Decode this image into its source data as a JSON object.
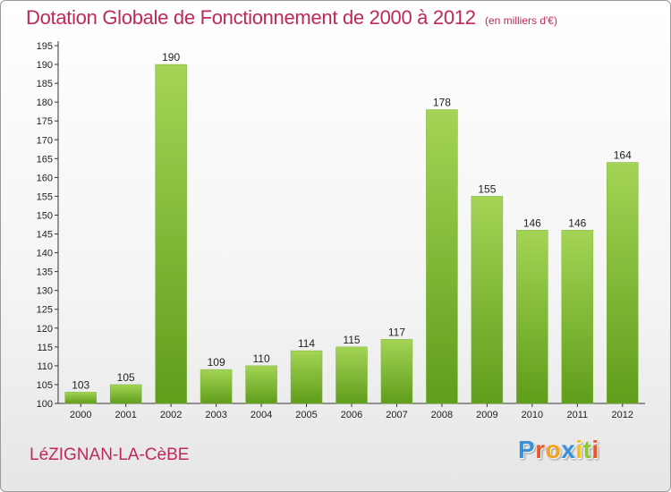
{
  "title": "Dotation Globale de Fonctionnement de 2000 à 2012",
  "subtitle": "(en milliers d'€)",
  "town": "LéZIGNAN-LA-CèBE",
  "logo": {
    "letters": [
      "P",
      "r",
      "o",
      "x",
      "i",
      "t",
      "i"
    ],
    "colors": [
      "#3a8fd8",
      "#e8562a",
      "#f4a020",
      "#3a8fd8",
      "#f4c020",
      "#8cc63f",
      "#e8562a"
    ]
  },
  "colors": {
    "bar_top": "#a4d455",
    "bar_bottom": "#5f9d1a",
    "title": "#c0285a"
  },
  "chart_data": {
    "type": "bar",
    "categories": [
      "2000",
      "2001",
      "2002",
      "2003",
      "2004",
      "2005",
      "2006",
      "2007",
      "2008",
      "2009",
      "2010",
      "2011",
      "2012"
    ],
    "values": [
      103,
      105,
      190,
      109,
      110,
      114,
      115,
      117,
      178,
      155,
      146,
      146,
      164
    ],
    "ylim": [
      100,
      195
    ],
    "yticks": [
      100,
      105,
      110,
      115,
      120,
      125,
      130,
      135,
      140,
      145,
      150,
      155,
      160,
      165,
      170,
      175,
      180,
      185,
      190,
      195
    ],
    "grid": false,
    "legend": "none"
  }
}
